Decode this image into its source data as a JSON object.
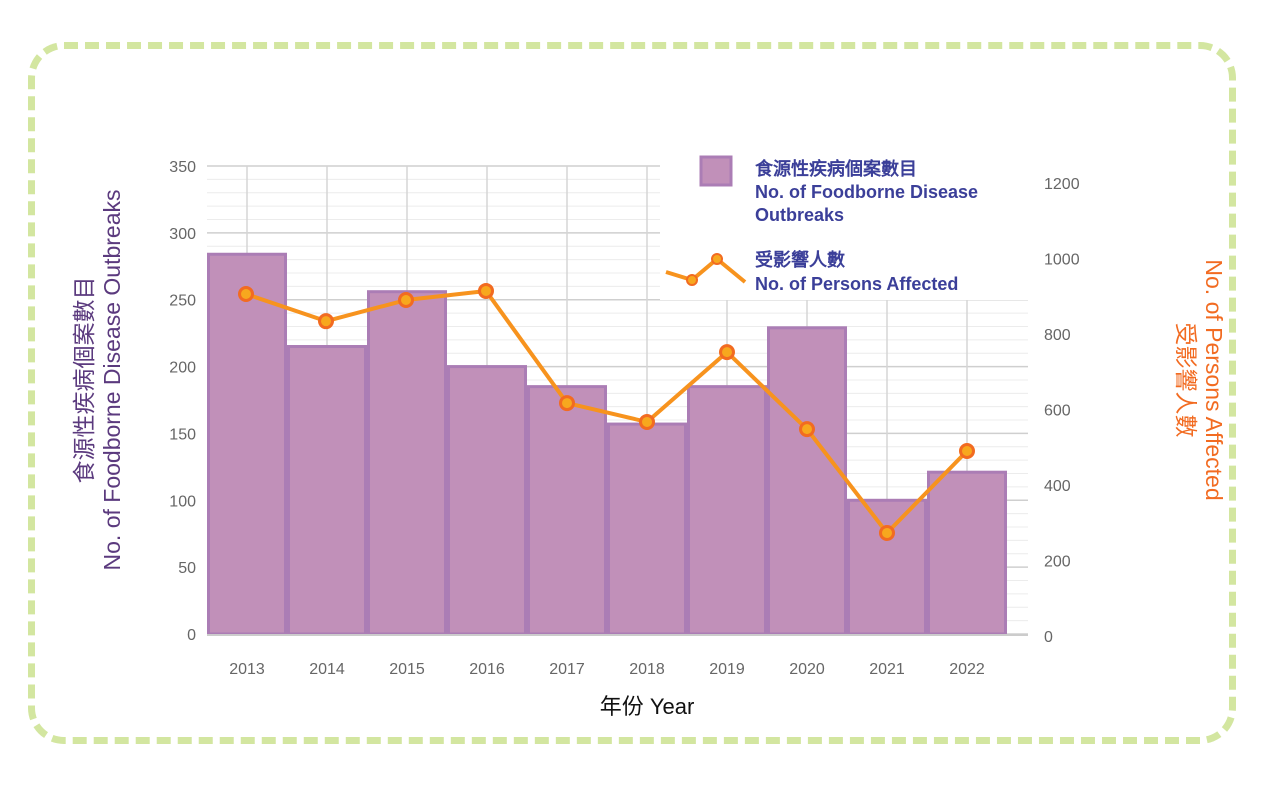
{
  "chart_data": {
    "type": "bar+line",
    "categories": [
      "2013",
      "2014",
      "2015",
      "2016",
      "2017",
      "2018",
      "2019",
      "2020",
      "2021",
      "2022"
    ],
    "series": [
      {
        "name": "No. of Foodborne Disease Outbreaks",
        "name_zh": "食源性疾病個案數目",
        "type": "bar",
        "axis": "left",
        "values": [
          284,
          215,
          256,
          200,
          185,
          157,
          185,
          229,
          100,
          121
        ],
        "color": "#c190b9"
      },
      {
        "name": "No. of Persons Affected",
        "name_zh": "受影響人數",
        "type": "line",
        "axis": "right",
        "values": [
          906,
          834,
          890,
          914,
          617,
          567,
          752,
          548,
          273,
          490
        ],
        "color": "#f7931e"
      }
    ],
    "xlabel": "年份 Year",
    "ylabel_zh": "食源性疾病個案數目",
    "ylabel": "No. of Foodborne Disease Outbreaks",
    "y2label_zh": "受影響人數",
    "y2label": "No. of Persons Affected",
    "ylim": [
      0,
      350
    ],
    "yticks": [
      "0",
      "50",
      "100",
      "150",
      "200",
      "250",
      "300",
      "350"
    ],
    "y2lim": [
      0,
      1200
    ],
    "y2ticks": [
      "0",
      "200",
      "400",
      "600",
      "800",
      "1000",
      "1200"
    ],
    "grid": true,
    "legend": "top-right"
  }
}
